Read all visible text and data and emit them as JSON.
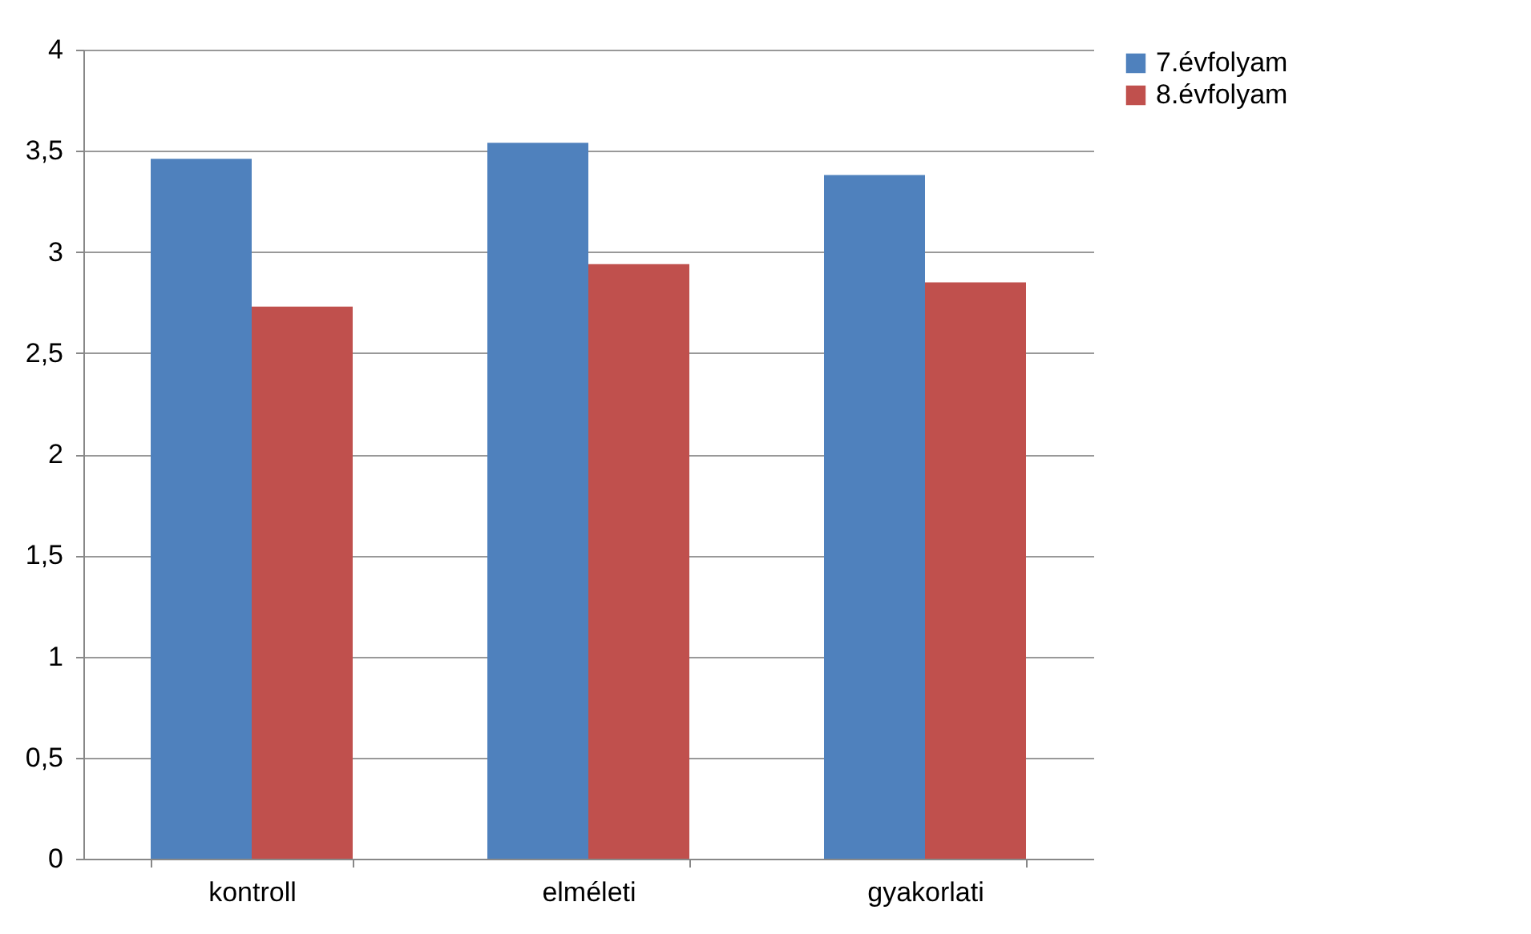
{
  "chart_data": {
    "type": "bar",
    "categories": [
      "kontroll",
      "elméleti",
      "gyakorlati"
    ],
    "series": [
      {
        "name": "7.évfolyam",
        "color": "#4f81bd",
        "values": [
          3.46,
          3.54,
          3.38
        ]
      },
      {
        "name": "8.évfolyam",
        "color": "#c0504d",
        "values": [
          2.73,
          2.94,
          2.85
        ]
      }
    ],
    "ylim": [
      0,
      4
    ],
    "yticks": [
      0,
      {
        "value": 0.5,
        "label": "0,5"
      },
      1,
      {
        "value": 1.5,
        "label": "1,5"
      },
      2,
      {
        "value": 2.5,
        "label": "2,5"
      },
      3,
      {
        "value": 3.5,
        "label": "3,5"
      },
      4
    ],
    "grid": "y",
    "legend": "right"
  }
}
